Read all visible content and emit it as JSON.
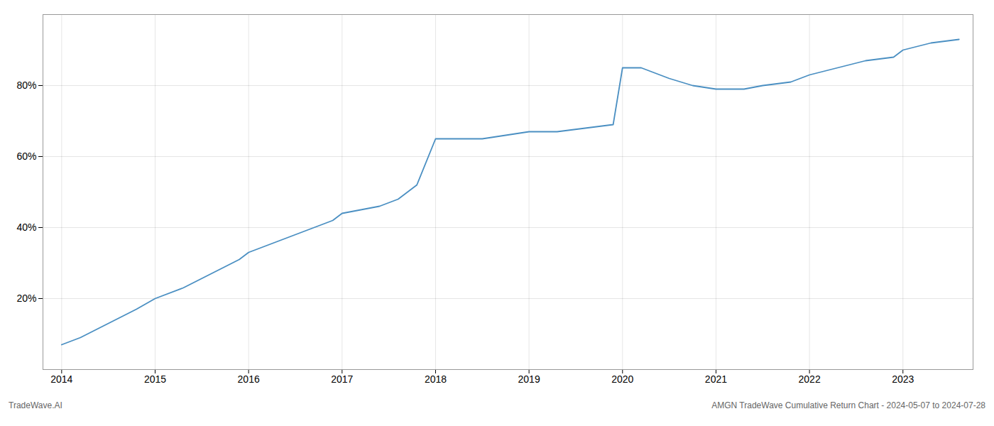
{
  "chart_data": {
    "type": "line",
    "annotations": [
      "TradeWave.AI",
      "AMGN TradeWave Cumulative Return Chart - 2024-05-07 to 2024-07-28"
    ],
    "x": [
      2014.0,
      2014.2,
      2014.5,
      2014.8,
      2015.0,
      2015.3,
      2015.6,
      2015.9,
      2016.0,
      2016.3,
      2016.6,
      2016.9,
      2017.0,
      2017.2,
      2017.4,
      2017.6,
      2017.8,
      2018.0,
      2018.1,
      2018.3,
      2018.5,
      2019.0,
      2019.3,
      2019.6,
      2019.9,
      2020.0,
      2020.2,
      2020.5,
      2020.75,
      2021.0,
      2021.3,
      2021.5,
      2021.8,
      2022.0,
      2022.3,
      2022.6,
      2022.9,
      2023.0,
      2023.3,
      2023.6
    ],
    "values": [
      7,
      9,
      13,
      17,
      20,
      23,
      27,
      31,
      33,
      36,
      39,
      42,
      44,
      45,
      46,
      48,
      52,
      65,
      65,
      65,
      65,
      67,
      67,
      68,
      69,
      85,
      85,
      82,
      80,
      79,
      79,
      80,
      81,
      83,
      85,
      87,
      88,
      90,
      92,
      93
    ],
    "color": "#4a8fc2",
    "xlim": [
      2013.8,
      2023.75
    ],
    "ylim": [
      0,
      100
    ],
    "xticks": [
      2014,
      2015,
      2016,
      2017,
      2018,
      2019,
      2020,
      2021,
      2022,
      2023
    ],
    "yticks": [
      {
        "value": 20,
        "label": "20%"
      },
      {
        "value": 40,
        "label": "40%"
      },
      {
        "value": 60,
        "label": "60%"
      },
      {
        "value": 80,
        "label": "80%"
      }
    ],
    "grid": true
  }
}
